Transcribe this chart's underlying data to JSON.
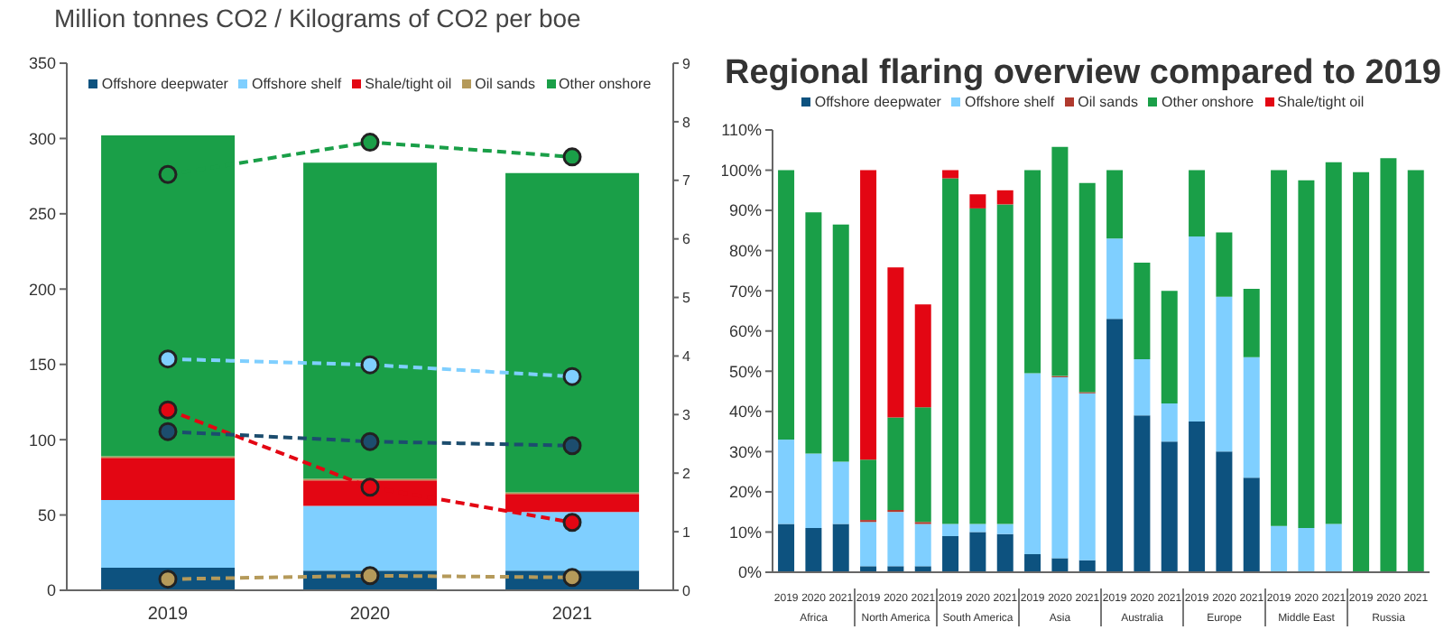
{
  "chart_data": [
    {
      "type": "bar",
      "title": "Million tonnes CO2 / Kilograms of CO2 per boe",
      "categories": [
        "2019",
        "2020",
        "2021"
      ],
      "stacked": true,
      "legend": "top",
      "grid": false,
      "marker": "circle",
      "line_style": "dashed",
      "ylim": [
        0,
        350
      ],
      "yticks": [
        0,
        50,
        100,
        150,
        200,
        250,
        300,
        350
      ],
      "y2lim": [
        0,
        9
      ],
      "y2ticks": [
        0,
        1,
        2,
        3,
        4,
        5,
        6,
        7,
        8,
        9
      ],
      "series": [
        {
          "name": "Offshore deepwater",
          "color": "#0d527f",
          "values": [
            15,
            13,
            13
          ]
        },
        {
          "name": "Offshore shelf",
          "color": "#7fcfff",
          "values": [
            45,
            43,
            39
          ]
        },
        {
          "name": "Shale/tight oil",
          "color": "#e30613",
          "values": [
            28,
            17,
            12
          ]
        },
        {
          "name": "Oil sands",
          "color": "#b59a5a",
          "values": [
            1,
            1,
            1
          ]
        },
        {
          "name": "Other onshore",
          "color": "#1a9f48",
          "values": [
            213,
            210,
            212
          ]
        },
        {
          "type": "line",
          "axis": "y2",
          "color": "#1a9f48",
          "values": [
            7.1,
            7.65,
            7.4
          ]
        },
        {
          "type": "line",
          "axis": "y2",
          "color": "#7fcfff",
          "values": [
            3.95,
            3.85,
            3.65
          ]
        },
        {
          "type": "line",
          "axis": "y2",
          "color": "#e30613",
          "values": [
            3.08,
            1.76,
            1.16
          ]
        },
        {
          "type": "line",
          "axis": "y2",
          "color": "#1c4d6e",
          "values": [
            2.71,
            2.54,
            2.47
          ]
        },
        {
          "type": "line",
          "axis": "y2",
          "color": "#b59a5a",
          "values": [
            0.19,
            0.25,
            0.22
          ]
        }
      ]
    },
    {
      "type": "bar",
      "title": "Regional flaring overview compared to 2019",
      "stacked": true,
      "legend": "top",
      "grid": false,
      "categories": [
        "2019",
        "2020",
        "2021",
        "2019",
        "2020",
        "2021",
        "2019",
        "2020",
        "2021",
        "2019",
        "2020",
        "2021",
        "2019",
        "2020",
        "2021",
        "2019",
        "2020",
        "2021",
        "2019",
        "2020",
        "2021",
        "2019",
        "2020",
        "2021"
      ],
      "annotations": [
        "Africa",
        "North America",
        "South America",
        "Asia",
        "Australia",
        "Europe",
        "Middle East",
        "Russia"
      ],
      "ylim": [
        0,
        110
      ],
      "yticks": [
        {
          "value": 0,
          "label": "0%"
        },
        {
          "value": 10,
          "label": "10%"
        },
        {
          "value": 20,
          "label": "20%"
        },
        {
          "value": 30,
          "label": "30%"
        },
        {
          "value": 40,
          "label": "40%"
        },
        {
          "value": 50,
          "label": "50%"
        },
        {
          "value": 60,
          "label": "60%"
        },
        {
          "value": 70,
          "label": "70%"
        },
        {
          "value": 80,
          "label": "80%"
        },
        {
          "value": 90,
          "label": "90%"
        },
        {
          "value": 100,
          "label": "100%"
        },
        {
          "value": 110,
          "label": "110%"
        }
      ],
      "series": [
        {
          "name": "Offshore deepwater",
          "color": "#0d527f",
          "values": [
            12,
            11,
            12,
            1.5,
            1.5,
            1.5,
            9,
            10,
            9.5,
            4.5,
            3.5,
            3,
            63,
            39,
            32.5,
            37.5,
            30,
            23.5,
            0,
            0,
            0,
            0,
            0,
            0
          ]
        },
        {
          "name": "Offshore shelf",
          "color": "#7fcfff",
          "values": [
            21,
            18.5,
            15.5,
            11,
            13.5,
            10.5,
            3,
            2,
            2.5,
            45,
            45,
            41.5,
            20,
            14,
            9.5,
            46,
            38.5,
            30,
            11.5,
            11,
            12,
            null,
            null,
            null
          ]
        },
        {
          "name": "Oil sands",
          "color": "#b03a2e",
          "values": [
            0,
            0,
            0,
            0.5,
            0.5,
            0.5,
            0,
            0,
            0,
            0,
            0.3,
            0.3,
            0,
            0,
            0,
            0,
            0,
            0,
            0,
            0,
            0,
            0,
            0,
            0
          ]
        },
        {
          "name": "Other onshore",
          "color": "#1a9f48",
          "values": [
            67,
            60,
            59,
            15,
            23,
            28.5,
            86,
            78.5,
            79.5,
            50.5,
            57,
            52,
            17,
            24,
            28,
            16.5,
            16,
            17,
            88.5,
            86.5,
            90,
            99.5,
            103,
            100
          ]
        },
        {
          "name": "Shale/tight oil",
          "color": "#e30613",
          "values": [
            0,
            0,
            0,
            72,
            37.3,
            25.6,
            2,
            3.5,
            3.5,
            0,
            0,
            0,
            0,
            0,
            0,
            0,
            0,
            0,
            0,
            0,
            0,
            0,
            0,
            0
          ]
        }
      ]
    }
  ]
}
